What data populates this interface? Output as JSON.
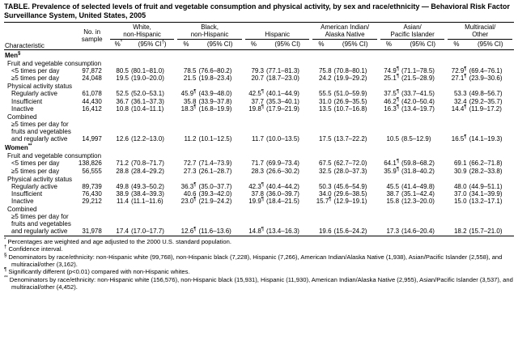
{
  "title": "TABLE. Prevalence of selected levels of fruit and vegetable consumption and physical activity, by sex and race/ethnicity — Behavioral Risk Factor Surveillance System, United States, 2005",
  "header": {
    "characteristic": "Characteristic",
    "sample": "No. in\nsample",
    "groups": [
      {
        "label": "White,\nnon-Hispanic",
        "pct": "%*",
        "ci": "(95% CI†)"
      },
      {
        "label": "Black,\nnon-Hispanic",
        "pct": "%",
        "ci": "(95% CI)"
      },
      {
        "label": "Hispanic",
        "pct": "%",
        "ci": "(95% CI)"
      },
      {
        "label": "American Indian/\nAlaska Native",
        "pct": "%",
        "ci": "(95% CI)"
      },
      {
        "label": "Asian/\nPacific Islander",
        "pct": "%",
        "ci": "(95% CI)"
      },
      {
        "label": "Multiracial/\nOther",
        "pct": "%",
        "ci": "(95% CI)"
      }
    ]
  },
  "rows": [
    {
      "type": "sex",
      "label": "Men§"
    },
    {
      "type": "subsection",
      "label": "Fruit and vegetable consumption"
    },
    {
      "type": "data",
      "label": "<5 times per day",
      "sample": "97,872",
      "cells": [
        [
          "80.5",
          "(80.1–81.0)"
        ],
        [
          "78.5",
          "(76.6–80.2)"
        ],
        [
          "79.3",
          "(77.1–81.3)"
        ],
        [
          "75.8",
          "(70.8–80.1)"
        ],
        [
          "74.9¶",
          "(71.1–78.5)"
        ],
        [
          "72.9¶",
          "(69.4–76.1)"
        ]
      ]
    },
    {
      "type": "data",
      "label": "≥5 times per day",
      "sample": "24,048",
      "cells": [
        [
          "19.5",
          "(19.0–20.0)"
        ],
        [
          "21.5",
          "(19.8–23.4)"
        ],
        [
          "20.7",
          "(18.7–23.0)"
        ],
        [
          "24.2",
          "(19.9–29.2)"
        ],
        [
          "25.1¶",
          "(21.5–28.9)"
        ],
        [
          "27.1¶",
          "(23.9–30.6)"
        ]
      ]
    },
    {
      "type": "subsection",
      "label": "Physical activity status"
    },
    {
      "type": "data",
      "label": "Regularly active",
      "sample": "61,078",
      "cells": [
        [
          "52.5",
          "(52.0–53.1)"
        ],
        [
          "45.9¶",
          "(43.9–48.0)"
        ],
        [
          "42.5¶",
          "(40.1–44.9)"
        ],
        [
          "55.5",
          "(51.0–59.9)"
        ],
        [
          "37.5¶",
          "(33.7–41.5)"
        ],
        [
          "53.3",
          "(49.8–56.7)"
        ]
      ]
    },
    {
      "type": "data",
      "label": "Insufficient",
      "sample": "44,430",
      "cells": [
        [
          "36.7",
          "(36.1–37.3)"
        ],
        [
          "35.8",
          "(33.9–37.8)"
        ],
        [
          "37.7",
          "(35.3–40.1)"
        ],
        [
          "31.0",
          "(26.9–35.5)"
        ],
        [
          "46.2¶",
          "(42.0–50.4)"
        ],
        [
          "32.4",
          "(29.2–35.7)"
        ]
      ]
    },
    {
      "type": "data",
      "label": "Inactive",
      "sample": "16,412",
      "cells": [
        [
          "10.8",
          "(10.4–11.1)"
        ],
        [
          "18.3¶",
          "(16.8–19.9)"
        ],
        [
          "19.8¶",
          "(17.9–21.9)"
        ],
        [
          "13.5",
          "(10.7–16.8)"
        ],
        [
          "16.3¶",
          "(13.4–19.7)"
        ],
        [
          "14.4¶",
          "(11.9–17.2)"
        ]
      ]
    },
    {
      "type": "subsection",
      "label": "Combined"
    },
    {
      "type": "data",
      "label": "≥5 times per day for fruits and vegetables and regularly active",
      "sample": "14,997",
      "cells": [
        [
          "12.6",
          "(12.2–13.0)"
        ],
        [
          "11.2",
          "(10.1–12.5)"
        ],
        [
          "11.7",
          "(10.0–13.5)"
        ],
        [
          "17.5",
          "(13.7–22.2)"
        ],
        [
          "10.5",
          "(8.5–12.9)"
        ],
        [
          "16.5¶",
          "(14.1–19.3)"
        ]
      ]
    },
    {
      "type": "sex",
      "label": "Women**"
    },
    {
      "type": "subsection",
      "label": "Fruit and vegetable consumption"
    },
    {
      "type": "data",
      "label": "<5 times per day",
      "sample": "138,826",
      "cells": [
        [
          "71.2",
          "(70.8–71.7)"
        ],
        [
          "72.7",
          "(71.4–73.9)"
        ],
        [
          "71.7",
          "(69.9–73.4)"
        ],
        [
          "67.5",
          "(62.7–72.0)"
        ],
        [
          "64.1¶",
          "(59.8–68.2)"
        ],
        [
          "69.1",
          "(66.2–71.8)"
        ]
      ]
    },
    {
      "type": "data",
      "label": "≥5 times per day",
      "sample": "56,555",
      "cells": [
        [
          "28.8",
          "(28.4–29.2)"
        ],
        [
          "27.3",
          "(26.1–28.7)"
        ],
        [
          "28.3",
          "(26.6–30.2)"
        ],
        [
          "32.5",
          "(28.0–37.3)"
        ],
        [
          "35.9¶",
          "(31.8–40.2)"
        ],
        [
          "30.9",
          "(28.2–33.8)"
        ]
      ]
    },
    {
      "type": "subsection",
      "label": "Physical activity status"
    },
    {
      "type": "data",
      "label": "Regularly active",
      "sample": "89,739",
      "cells": [
        [
          "49.8",
          "(49.3–50.2)"
        ],
        [
          "36.3¶",
          "(35.0–37.7)"
        ],
        [
          "42.3¶",
          "(40.4–44.2)"
        ],
        [
          "50.3",
          "(45.6–54.9)"
        ],
        [
          "45.5",
          "(41.4–49.8)"
        ],
        [
          "48.0",
          "(44.9–51.1)"
        ]
      ]
    },
    {
      "type": "data",
      "label": "Insufficient",
      "sample": "76,430",
      "cells": [
        [
          "38.9",
          "(38.4–39.3)"
        ],
        [
          "40.6",
          "(39.3–42.0)"
        ],
        [
          "37.8",
          "(36.0–39.7)"
        ],
        [
          "34.0",
          "(29.6–38.5)"
        ],
        [
          "38.7",
          "(35.1–42.4)"
        ],
        [
          "37.0",
          "(34.1–39.9)"
        ]
      ]
    },
    {
      "type": "data",
      "label": "Inactive",
      "sample": "29,212",
      "cells": [
        [
          "11.4",
          "(11.1–11.6)"
        ],
        [
          "23.0¶",
          "(21.9–24.2)"
        ],
        [
          "19.9¶",
          "(18.4–21.5)"
        ],
        [
          "15.7¶",
          "(12.9–19.1)"
        ],
        [
          "15.8",
          "(12.3–20.0)"
        ],
        [
          "15.0",
          "(13.2–17.1)"
        ]
      ]
    },
    {
      "type": "subsection",
      "label": "Combined"
    },
    {
      "type": "data",
      "label": "≥5 times per day for fruits and vegetables and regularly active",
      "sample": "31,978",
      "cells": [
        [
          "17.4",
          "(17.0–17.7)"
        ],
        [
          "12.6¶",
          "(11.6–13.6)"
        ],
        [
          "14.8¶",
          "(13.4–16.3)"
        ],
        [
          "19.6",
          "(15.6–24.2)"
        ],
        [
          "17.3",
          "(14.6–20.4)"
        ],
        [
          "18.2",
          "(15.7–21.0)"
        ]
      ]
    }
  ],
  "footnotes": [
    "* Percentages are weighted and age adjusted to the 2000 U.S. standard population.",
    "† Confidence interval.",
    "§ Denominators by race/ethnicity: non-Hispanic white (99,768), non-Hispanic black (7,228), Hispanic (7,266), American Indian/Alaska Native (1,938), Asian/Pacific Islander (2,558), and multiracial/other (3,162).",
    "¶ Significantly different (p<0.01) compared with non-Hispanic whites.",
    "** Denominators by race/ethnicity: non-Hispanic white (156,576), non-Hispanic black (15,931), Hispanic (11,930), American Indian/Alaska Native (2,955), Asian/Pacific Islander (3,537), and multiracial/other (4,452)."
  ]
}
